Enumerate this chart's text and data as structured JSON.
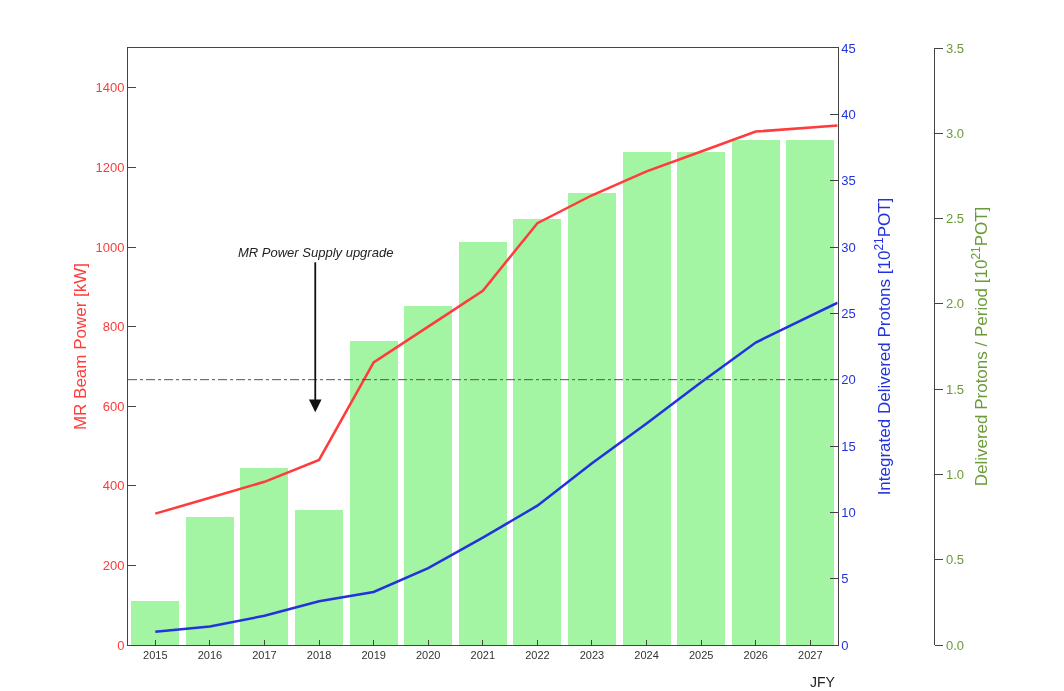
{
  "chart_data": {
    "type": "line",
    "xlabel": "JFY",
    "ylabel": "MR Beam Power [kW]",
    "y2label": "Integrated Delivered Protons [10$^{21}$POT]",
    "y3label": "Delivered Protons / Period [10$^{21}$POT]",
    "xlim": [
      2014.5,
      2027.5
    ],
    "xticks": [
      2015,
      2016,
      2017,
      2018,
      2019,
      2020,
      2021,
      2022,
      2023,
      2024,
      2025,
      2026,
      2027
    ],
    "ylim": [
      0,
      1500
    ],
    "yticks": [
      0,
      200,
      400,
      600,
      800,
      1000,
      1200,
      1400
    ],
    "y2lim": [
      0,
      45
    ],
    "y2ticks": [
      0,
      5,
      10,
      15,
      20,
      25,
      30,
      35,
      40,
      45
    ],
    "y3lim": [
      0,
      3.5
    ],
    "y3ticks": [
      {
        "value": 0,
        "label": "0.0"
      },
      {
        "value": 0.5,
        "label": "0.5"
      },
      {
        "value": 1,
        "label": "1.0"
      },
      {
        "value": 1.5,
        "label": "1.5"
      },
      {
        "value": 2,
        "label": "2.0"
      },
      {
        "value": 2.5,
        "label": "2.5"
      },
      {
        "value": 3,
        "label": "3.0"
      },
      {
        "value": 3.5,
        "label": "3.5"
      }
    ],
    "series": [
      {
        "type": "bar",
        "axis": "y3",
        "color": "#a3f5a3",
        "x": [
          2015,
          2016,
          2017,
          2018,
          2019,
          2020,
          2021,
          2022,
          2023,
          2024,
          2025,
          2026,
          2027
        ],
        "values": [
          0.26,
          0.75,
          1.04,
          0.79,
          1.78,
          1.99,
          2.36,
          2.5,
          2.65,
          2.89,
          2.89,
          2.96,
          2.96
        ]
      },
      {
        "axis": "y",
        "color": "#ff3b3b",
        "x": [
          2015,
          2016,
          2017,
          2018,
          2019,
          2020,
          2021,
          2022,
          2023,
          2024,
          2025,
          2026,
          2027.5
        ],
        "values": [
          330,
          370,
          410,
          465,
          710,
          800,
          890,
          1060,
          1130,
          1190,
          1240,
          1290,
          1305
        ]
      },
      {
        "axis": "y2",
        "color": "#2233dd",
        "x": [
          2015,
          2016,
          2017,
          2018,
          2019,
          2020,
          2021,
          2022,
          2023,
          2024,
          2025,
          2026,
          2027.5
        ],
        "values": [
          1.0,
          1.4,
          2.2,
          3.3,
          4.0,
          5.8,
          8.1,
          10.5,
          13.7,
          16.7,
          19.8,
          22.8,
          25.8
        ]
      }
    ],
    "ref_lines": [
      {
        "axis": "y2",
        "value": 20,
        "color": "#555555",
        "line_style": "dashdot"
      }
    ],
    "annotations": [
      "MR Power Supply upgrade"
    ],
    "grid": false
  }
}
